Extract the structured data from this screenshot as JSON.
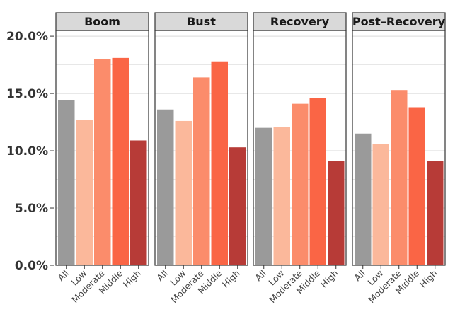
{
  "chart_data": {
    "type": "bar",
    "categories": [
      "All",
      "Low",
      "Moderate",
      "Middle",
      "High"
    ],
    "category_colors": [
      "#9a9a9a",
      "#fbb89b",
      "#fb8c6b",
      "#fa6545",
      "#b73b37"
    ],
    "panels": [
      {
        "title": "Boom",
        "values": [
          14.4,
          12.7,
          18.0,
          18.1,
          10.9
        ]
      },
      {
        "title": "Bust",
        "values": [
          13.6,
          12.6,
          16.4,
          17.8,
          10.3
        ]
      },
      {
        "title": "Recovery",
        "values": [
          12.0,
          12.1,
          14.1,
          14.6,
          9.1
        ]
      },
      {
        "title": "Post–Recovery",
        "values": [
          11.5,
          10.6,
          15.3,
          13.8,
          9.1
        ]
      }
    ],
    "y_ticks": [
      "0.0%",
      "5.0%",
      "10.0%",
      "15.0%",
      "20.0%"
    ],
    "y_tick_values": [
      0,
      5,
      10,
      15,
      20
    ],
    "ylim": [
      0,
      20.5
    ],
    "xlabel": "",
    "ylabel": "",
    "grid": true,
    "legend": "none",
    "colors": {
      "strip_bg": "#d9d9d9",
      "grid": "#d9d9d9",
      "frame": "#333333",
      "text": "#333333"
    }
  }
}
